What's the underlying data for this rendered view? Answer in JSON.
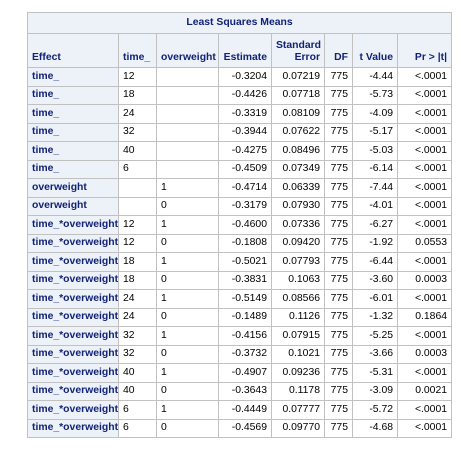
{
  "table": {
    "title": "Least Squares Means",
    "headers": {
      "effect": "Effect",
      "time": "time_",
      "overweight": "overweight",
      "estimate": "Estimate",
      "stderr_line1": "Standard",
      "stderr_line2": "Error",
      "df": "DF",
      "tvalue": "t Value",
      "pr": "Pr > |t|"
    },
    "rows": [
      {
        "effect": "time_",
        "time": "12",
        "overweight": "",
        "estimate": "-0.3204",
        "stderr": "0.07219",
        "df": "775",
        "tvalue": "-4.44",
        "pr": "<.0001"
      },
      {
        "effect": "time_",
        "time": "18",
        "overweight": "",
        "estimate": "-0.4426",
        "stderr": "0.07718",
        "df": "775",
        "tvalue": "-5.73",
        "pr": "<.0001"
      },
      {
        "effect": "time_",
        "time": "24",
        "overweight": "",
        "estimate": "-0.3319",
        "stderr": "0.08109",
        "df": "775",
        "tvalue": "-4.09",
        "pr": "<.0001"
      },
      {
        "effect": "time_",
        "time": "32",
        "overweight": "",
        "estimate": "-0.3944",
        "stderr": "0.07622",
        "df": "775",
        "tvalue": "-5.17",
        "pr": "<.0001"
      },
      {
        "effect": "time_",
        "time": "40",
        "overweight": "",
        "estimate": "-0.4275",
        "stderr": "0.08496",
        "df": "775",
        "tvalue": "-5.03",
        "pr": "<.0001"
      },
      {
        "effect": "time_",
        "time": "6",
        "overweight": "",
        "estimate": "-0.4509",
        "stderr": "0.07349",
        "df": "775",
        "tvalue": "-6.14",
        "pr": "<.0001"
      },
      {
        "effect": "overweight",
        "time": "",
        "overweight": "1",
        "estimate": "-0.4714",
        "stderr": "0.06339",
        "df": "775",
        "tvalue": "-7.44",
        "pr": "<.0001"
      },
      {
        "effect": "overweight",
        "time": "",
        "overweight": "0",
        "estimate": "-0.3179",
        "stderr": "0.07930",
        "df": "775",
        "tvalue": "-4.01",
        "pr": "<.0001"
      },
      {
        "effect": "time_*overweight",
        "time": "12",
        "overweight": "1",
        "estimate": "-0.4600",
        "stderr": "0.07336",
        "df": "775",
        "tvalue": "-6.27",
        "pr": "<.0001"
      },
      {
        "effect": "time_*overweight",
        "time": "12",
        "overweight": "0",
        "estimate": "-0.1808",
        "stderr": "0.09420",
        "df": "775",
        "tvalue": "-1.92",
        "pr": "0.0553"
      },
      {
        "effect": "time_*overweight",
        "time": "18",
        "overweight": "1",
        "estimate": "-0.5021",
        "stderr": "0.07793",
        "df": "775",
        "tvalue": "-6.44",
        "pr": "<.0001"
      },
      {
        "effect": "time_*overweight",
        "time": "18",
        "overweight": "0",
        "estimate": "-0.3831",
        "stderr": "0.1063",
        "df": "775",
        "tvalue": "-3.60",
        "pr": "0.0003"
      },
      {
        "effect": "time_*overweight",
        "time": "24",
        "overweight": "1",
        "estimate": "-0.5149",
        "stderr": "0.08566",
        "df": "775",
        "tvalue": "-6.01",
        "pr": "<.0001"
      },
      {
        "effect": "time_*overweight",
        "time": "24",
        "overweight": "0",
        "estimate": "-0.1489",
        "stderr": "0.1126",
        "df": "775",
        "tvalue": "-1.32",
        "pr": "0.1864"
      },
      {
        "effect": "time_*overweight",
        "time": "32",
        "overweight": "1",
        "estimate": "-0.4156",
        "stderr": "0.07915",
        "df": "775",
        "tvalue": "-5.25",
        "pr": "<.0001"
      },
      {
        "effect": "time_*overweight",
        "time": "32",
        "overweight": "0",
        "estimate": "-0.3732",
        "stderr": "0.1021",
        "df": "775",
        "tvalue": "-3.66",
        "pr": "0.0003"
      },
      {
        "effect": "time_*overweight",
        "time": "40",
        "overweight": "1",
        "estimate": "-0.4907",
        "stderr": "0.09236",
        "df": "775",
        "tvalue": "-5.31",
        "pr": "<.0001"
      },
      {
        "effect": "time_*overweight",
        "time": "40",
        "overweight": "0",
        "estimate": "-0.3643",
        "stderr": "0.1178",
        "df": "775",
        "tvalue": "-3.09",
        "pr": "0.0021"
      },
      {
        "effect": "time_*overweight",
        "time": "6",
        "overweight": "1",
        "estimate": "-0.4449",
        "stderr": "0.07777",
        "df": "775",
        "tvalue": "-5.72",
        "pr": "<.0001"
      },
      {
        "effect": "time_*overweight",
        "time": "6",
        "overweight": "0",
        "estimate": "-0.4569",
        "stderr": "0.09770",
        "df": "775",
        "tvalue": "-4.68",
        "pr": "<.0001"
      }
    ]
  },
  "colors": {
    "header_bg": "#edf2f9",
    "header_text": "#112277",
    "border": "#c1c1c1",
    "body_text": "#000000"
  }
}
